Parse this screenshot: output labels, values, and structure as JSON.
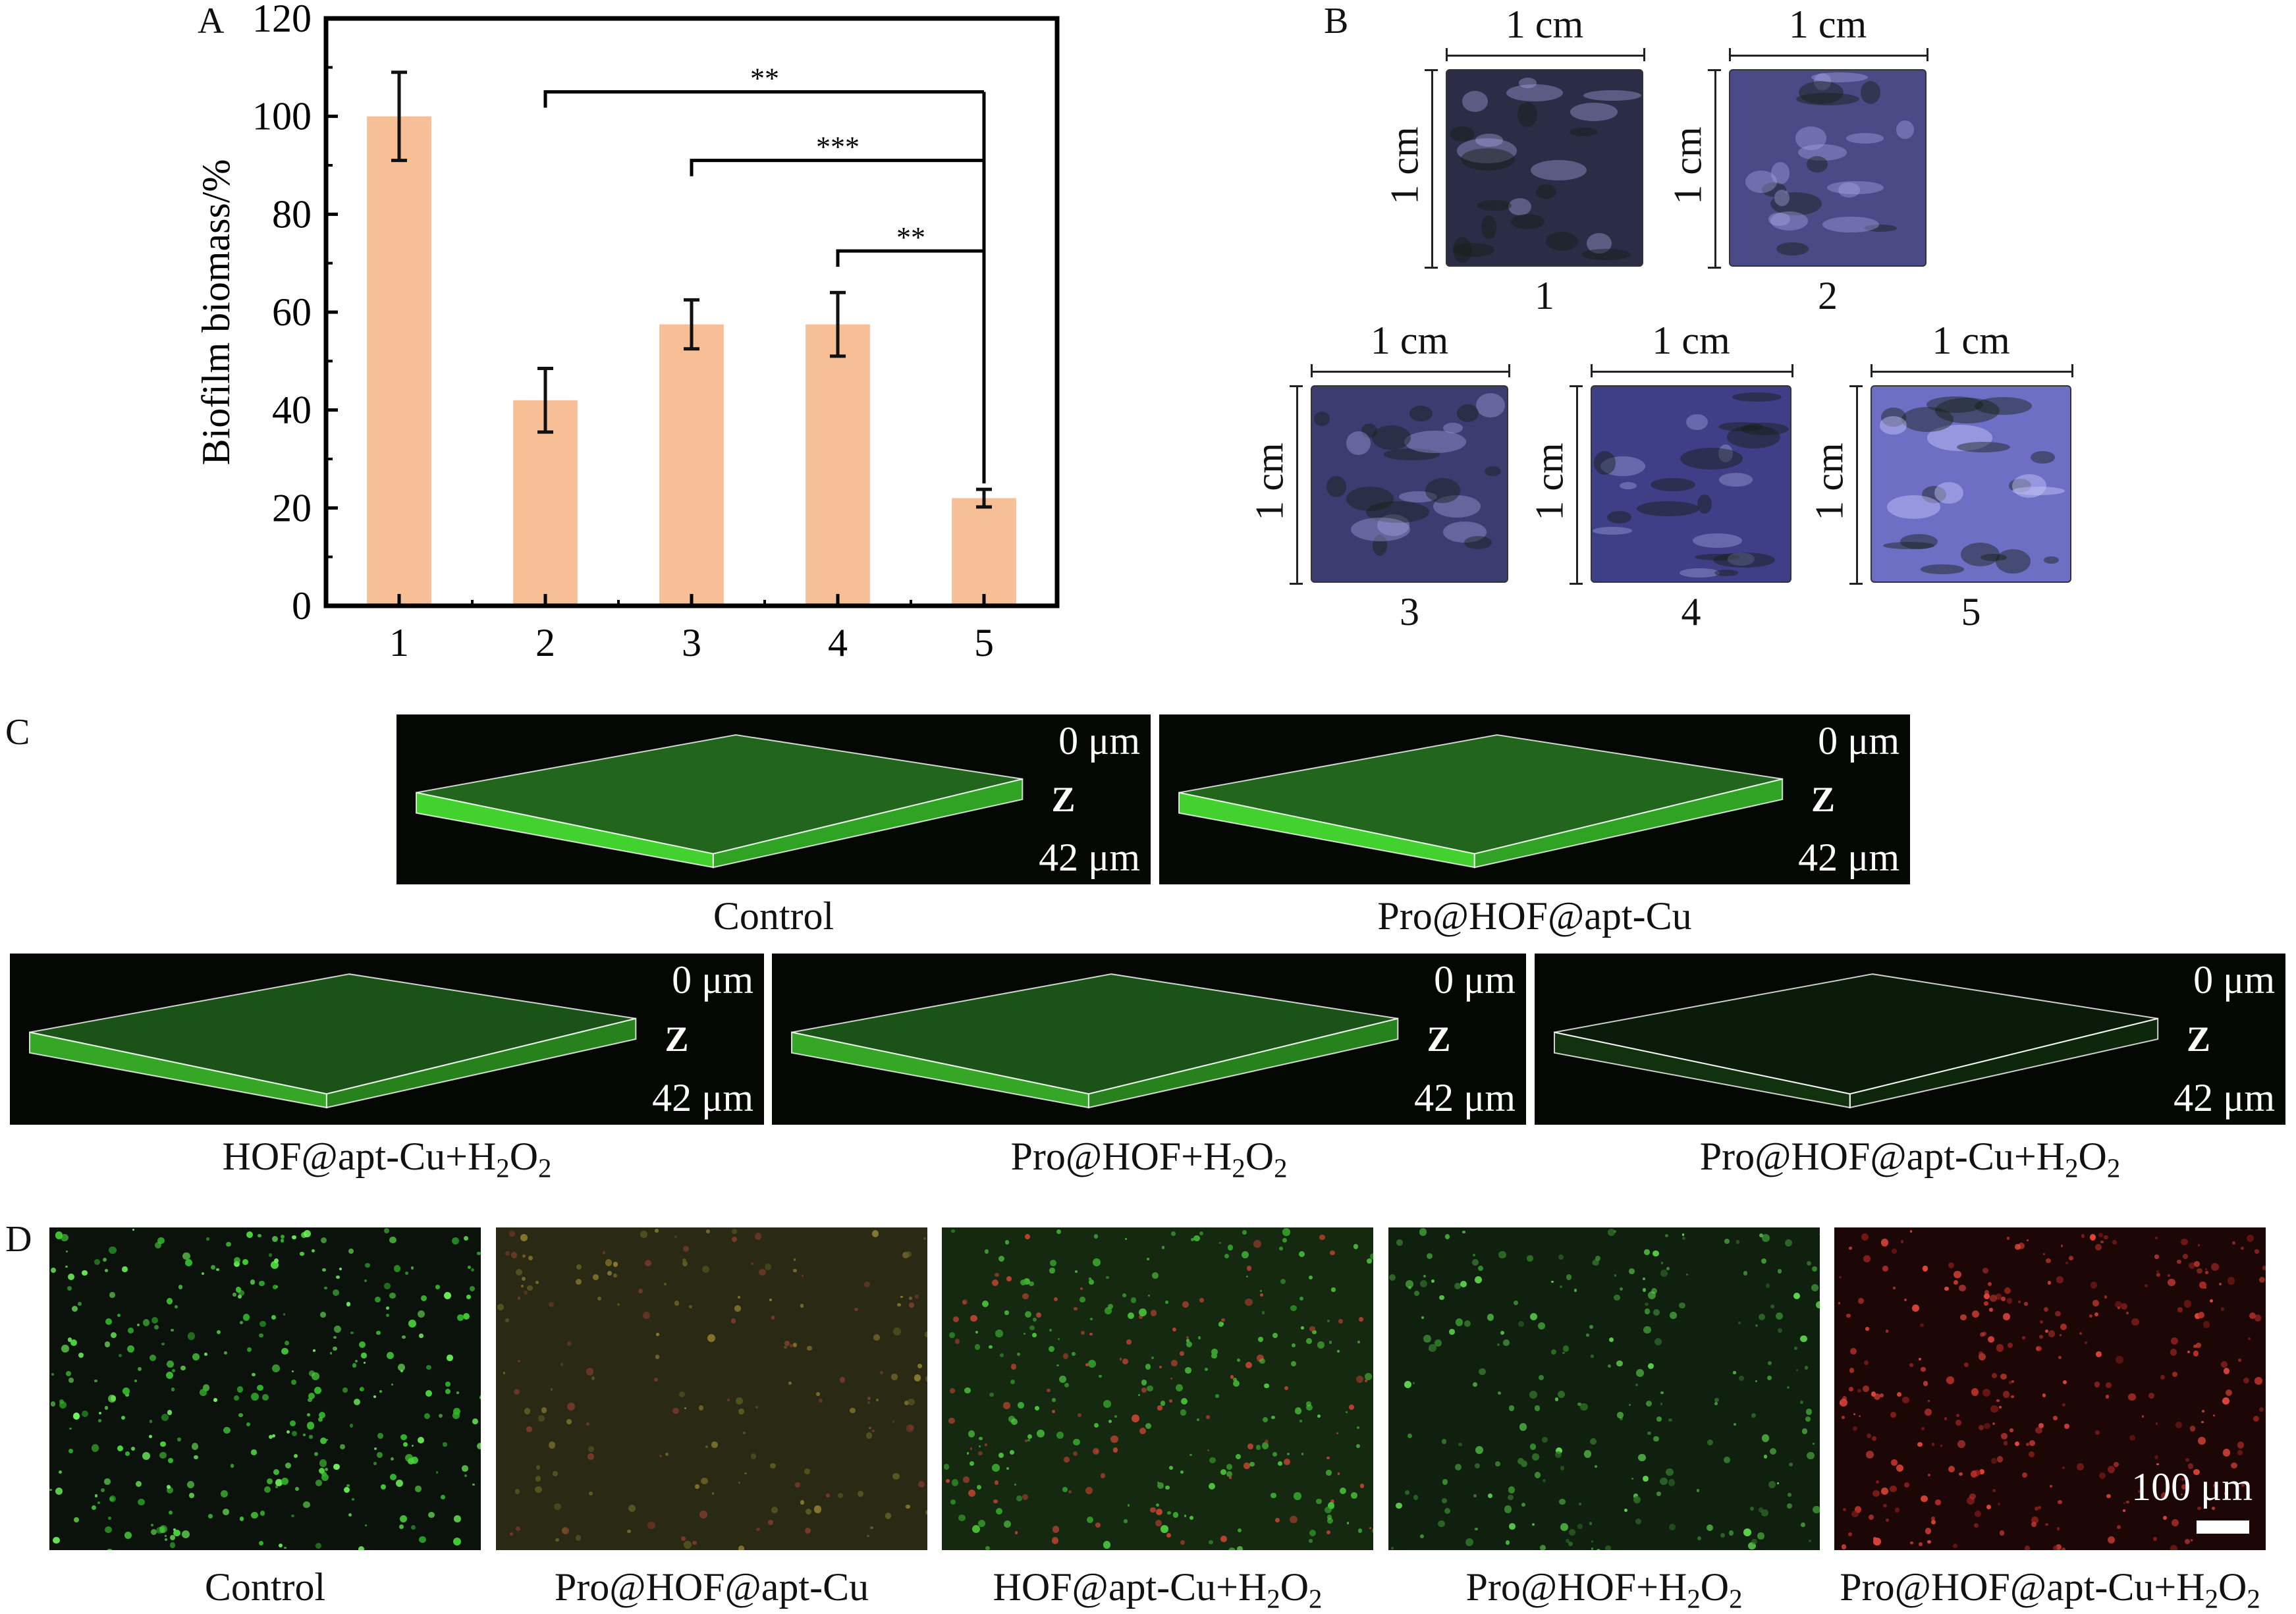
{
  "panels": {
    "a_letter": "A",
    "b_letter": "B",
    "c_letter": "C",
    "d_letter": "D"
  },
  "chart_data": {
    "type": "bar",
    "categories": [
      "1",
      "2",
      "3",
      "4",
      "5"
    ],
    "values": [
      100,
      42,
      57.5,
      57.5,
      22
    ],
    "errors": [
      9,
      6.5,
      5,
      6.5,
      1.8
    ],
    "ylabel": "Biofilm biomass/%",
    "xlabel": "",
    "ylim": [
      0,
      120
    ],
    "yticks": [
      0,
      20,
      40,
      60,
      80,
      100,
      120
    ],
    "bar_color": "#f7bf96",
    "significance": [
      {
        "from": "2",
        "to": "5",
        "label": "**"
      },
      {
        "from": "3",
        "to": "5",
        "label": "***"
      },
      {
        "from": "4",
        "to": "5",
        "label": "**"
      }
    ]
  },
  "panel_b": {
    "dimension_label": "1 cm",
    "samples": [
      {
        "label": "1",
        "color": "#2b2c45"
      },
      {
        "label": "2",
        "color": "#4a4b86"
      },
      {
        "label": "3",
        "color": "#3b3d70"
      },
      {
        "label": "4",
        "color": "#3e3f86"
      },
      {
        "label": "5",
        "color": "#6d6fc4"
      }
    ]
  },
  "panel_c": {
    "depth_top": "0 μm",
    "depth_bottom": "42 μm",
    "axis_glyph": "Z",
    "cells": [
      {
        "label": "Control",
        "sub": "",
        "intensity": "high"
      },
      {
        "label": "Pro@HOF@apt-Cu",
        "sub": "",
        "intensity": "high"
      },
      {
        "label": "HOF@apt-Cu+H",
        "sub": "2",
        "tail": "O",
        "sub2": "2",
        "intensity": "medium"
      },
      {
        "label": "Pro@HOF+H",
        "sub": "2",
        "tail": "O",
        "sub2": "2",
        "intensity": "medium"
      },
      {
        "label": "Pro@HOF@apt-Cu+H",
        "sub": "2",
        "tail": "O",
        "sub2": "2",
        "intensity": "low"
      }
    ]
  },
  "panel_d": {
    "scale_bar_label": "100 μm",
    "cells": [
      {
        "label": "Control",
        "sub": "",
        "tail": "",
        "sub2": "",
        "tone": "green"
      },
      {
        "label": "Pro@HOF@apt-Cu",
        "sub": "",
        "tail": "",
        "sub2": "",
        "tone": "olive"
      },
      {
        "label": "HOF@apt-Cu+H",
        "sub": "2",
        "tail": "O",
        "sub2": "2",
        "tone": "green-red"
      },
      {
        "label": "Pro@HOF+H",
        "sub": "2",
        "tail": "O",
        "sub2": "2",
        "tone": "dark-green"
      },
      {
        "label": "Pro@HOF@apt-Cu+H",
        "sub": "2",
        "tail": "O",
        "sub2": "2",
        "tone": "red"
      }
    ]
  }
}
